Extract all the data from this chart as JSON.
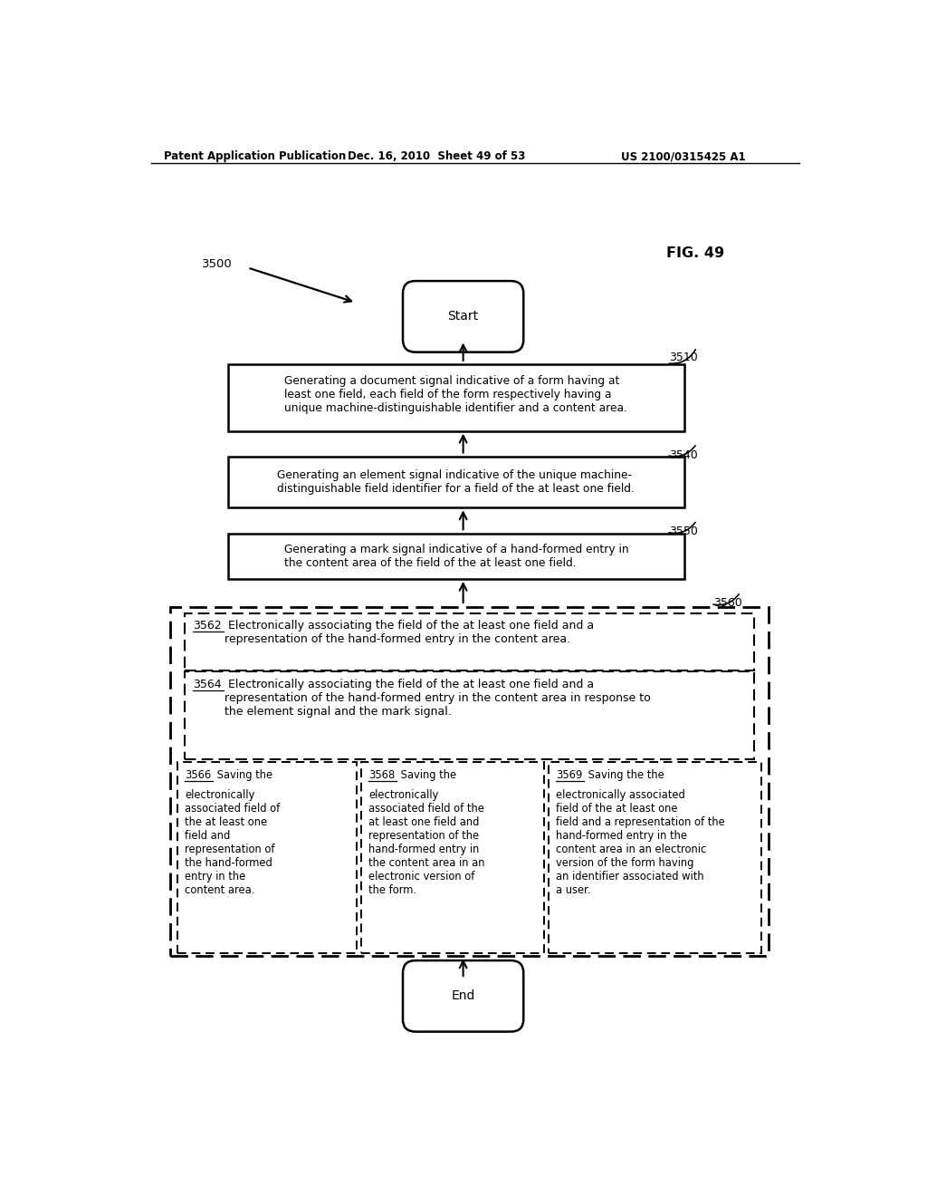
{
  "header_left": "Patent Application Publication",
  "header_mid": "Dec. 16, 2010  Sheet 49 of 53",
  "header_right": "US 2100/0315425 A1",
  "fig_label": "FIG. 49",
  "diagram_label": "3500",
  "start_label": "Start",
  "end_label": "End",
  "box3510_label": "3510",
  "box3510_text": "Generating a document signal indicative of a form having at\nleast one field, each field of the form respectively having a\nunique machine-distinguishable identifier and a content area.",
  "box3540_label": "3540",
  "box3540_text": "Generating an element signal indicative of the unique machine-\ndistinguishable field identifier for a field of the at least one field.",
  "box3550_label": "3550",
  "box3550_text": "Generating a mark signal indicative of a hand-formed entry in\nthe content area of the field of the at least one field.",
  "box3560_label": "3560",
  "box3562_label": "3562",
  "box3562_text": " Electronically associating the field of the at least one field and a\nrepresentation of the hand-formed entry in the content area.",
  "box3564_label": "3564",
  "box3564_text": " Electronically associating the field of the at least one field and a\nrepresentation of the hand-formed entry in the content area in response to\nthe element signal and the mark signal.",
  "box3566_label": "3566",
  "box3566_line1": " Saving the",
  "box3566_rest": "electronically\nassociated field of\nthe at least one\nfield and\nrepresentation of\nthe hand-formed\nentry in the\ncontent area.",
  "box3568_label": "3568",
  "box3568_line1": " Saving the",
  "box3568_rest": "electronically\nassociated field of the\nat least one field and\nrepresentation of the\nhand-formed entry in\nthe content area in an\nelectronic version of\nthe form.",
  "box3569_label": "3569",
  "box3569_line1": " Saving the the",
  "box3569_rest": "electronically associated\nfield of the at least one\nfield and a representation of the\nhand-formed entry in the\ncontent area in an electronic\nversion of the form having\nan identifier associated with\na user.",
  "bg_color": "#ffffff",
  "text_color": "#000000"
}
